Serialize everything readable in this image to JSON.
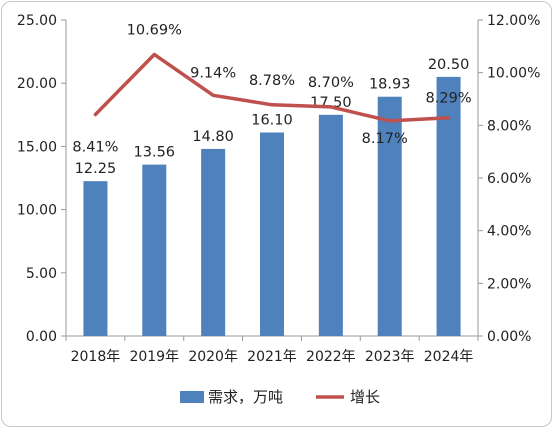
{
  "chart_data": {
    "type": "bar",
    "categories": [
      "2018年",
      "2019年",
      "2020年",
      "2021年",
      "2022年",
      "2023年",
      "2024年"
    ],
    "series": [
      {
        "name": "需求，万吨",
        "type": "bar",
        "axis": "left",
        "color": "#4F81BD",
        "values": [
          12.25,
          13.56,
          14.8,
          16.1,
          17.5,
          18.93,
          20.5
        ],
        "labels": [
          "12.25",
          "13.56",
          "14.80",
          "16.10",
          "17.50",
          "18.93",
          "20.50"
        ]
      },
      {
        "name": "增长",
        "type": "line",
        "axis": "right",
        "color": "#C0504D",
        "values": [
          8.41,
          10.69,
          9.14,
          8.78,
          8.7,
          8.17,
          8.29
        ],
        "labels": [
          "8.41%",
          "10.69%",
          "9.14%",
          "8.78%",
          "8.70%",
          "8.17%",
          "8.29%"
        ]
      }
    ],
    "y_left": {
      "ylim": [
        0,
        25
      ],
      "ticks": [
        "0.00",
        "5.00",
        "10.00",
        "15.00",
        "20.00",
        "25.00"
      ]
    },
    "y_right": {
      "ylim": [
        0,
        12
      ],
      "ticks": [
        "0.00%",
        "2.00%",
        "4.00%",
        "6.00%",
        "8.00%",
        "10.00%",
        "12.00%"
      ]
    },
    "grid": false,
    "legend_position": "bottom"
  }
}
